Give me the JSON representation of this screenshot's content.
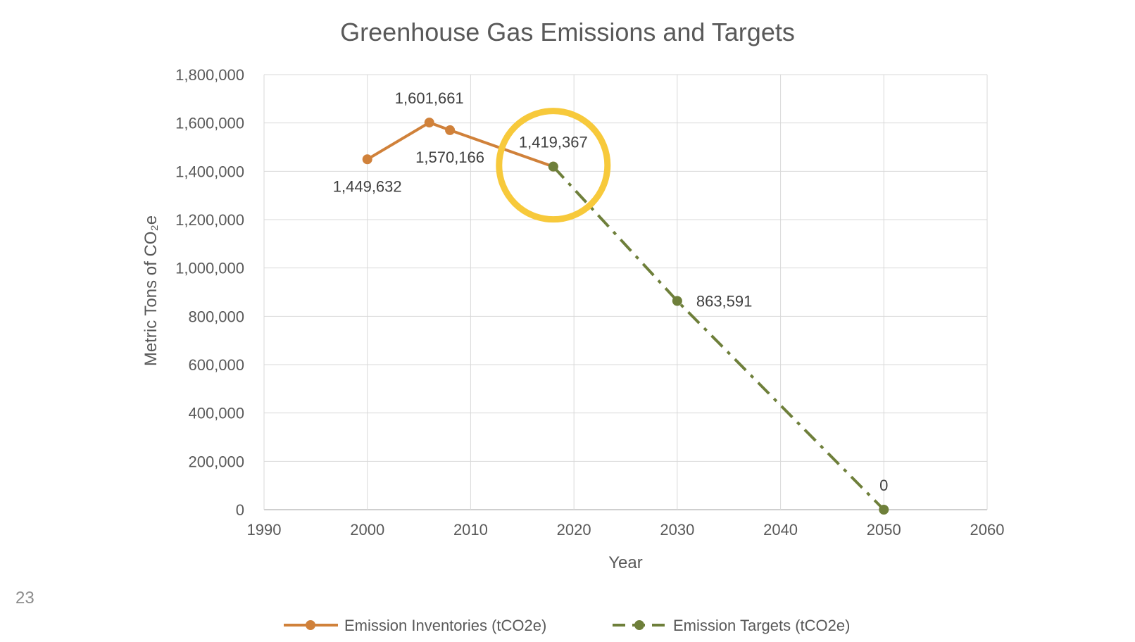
{
  "slide_number": "23",
  "chart_data": {
    "type": "line",
    "title": "Greenhouse Gas Emissions and Targets",
    "xlabel": "Year",
    "ylabel": "Metric Tons of CO₂e",
    "xlim": [
      1990,
      2060
    ],
    "ylim": [
      0,
      1800000
    ],
    "x_ticks": [
      1990,
      2000,
      2010,
      2020,
      2030,
      2040,
      2050,
      2060
    ],
    "x_tick_labels": [
      "1990",
      "2000",
      "2010",
      "2020",
      "2030",
      "2040",
      "2050",
      "2060"
    ],
    "y_ticks": [
      0,
      200000,
      400000,
      600000,
      800000,
      1000000,
      1200000,
      1400000,
      1600000,
      1800000
    ],
    "y_tick_labels": [
      "0",
      "200,000",
      "400,000",
      "600,000",
      "800,000",
      "1,000,000",
      "1,200,000",
      "1,400,000",
      "1,600,000",
      "1,800,000"
    ],
    "grid": true,
    "legend_position": "bottom",
    "series": [
      {
        "name": "Emission Inventories (tCO2e)",
        "color": "#D0813A",
        "line_style": "solid",
        "x": [
          2000,
          2006,
          2008,
          2018
        ],
        "y": [
          1449632,
          1601661,
          1570166,
          1419367
        ],
        "labels": [
          "1,449,632",
          "1,601,661",
          "1,570,166",
          null
        ],
        "label_positions": [
          "below",
          "above",
          "below",
          null
        ]
      },
      {
        "name": "Emission Targets (tCO2e)",
        "color": "#6E7F3A",
        "line_style": "dash-dot",
        "x": [
          2018,
          2030,
          2050
        ],
        "y": [
          1419367,
          863591,
          0
        ],
        "labels": [
          "1,419,367",
          "863,591",
          "0"
        ],
        "label_positions": [
          "above",
          "right",
          "above"
        ]
      }
    ],
    "annotations": [
      {
        "type": "circle-highlight",
        "x": 2018,
        "y": 1419367,
        "color": "#F7C93B"
      }
    ]
  }
}
